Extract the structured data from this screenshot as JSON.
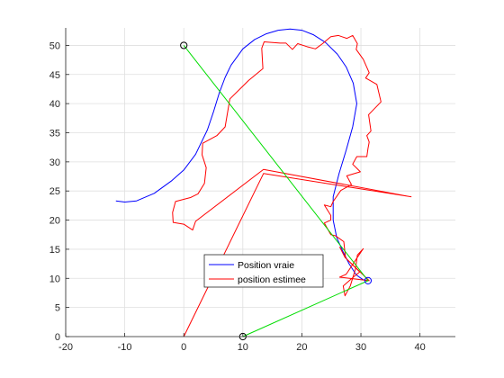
{
  "chart_data": {
    "type": "line",
    "title": "",
    "xlabel": "",
    "ylabel": "",
    "xlim": [
      -20,
      46
    ],
    "ylim": [
      0,
      53
    ],
    "grid": true,
    "x_ticks": [
      -20,
      -10,
      0,
      10,
      20,
      30,
      40
    ],
    "y_ticks": [
      0,
      5,
      10,
      15,
      20,
      25,
      30,
      35,
      40,
      45,
      50
    ],
    "legend": {
      "placement": "center-bottom",
      "entries": [
        {
          "label": "Position vraie",
          "color": "#0000ff"
        },
        {
          "label": "position estimee",
          "color": "#ff0000"
        }
      ]
    },
    "series": [
      {
        "name": "Position vraie",
        "color": "#0000ff",
        "points": [
          [
            -11.5,
            23.3
          ],
          [
            -10,
            23.1
          ],
          [
            -8,
            23.3
          ],
          [
            -5,
            24.6
          ],
          [
            -2,
            26.8
          ],
          [
            0,
            28.6
          ],
          [
            2,
            31.3
          ],
          [
            4,
            35.5
          ],
          [
            5,
            38.5
          ],
          [
            6,
            41.8
          ],
          [
            7,
            44.5
          ],
          [
            8,
            46.6
          ],
          [
            10,
            49.4
          ],
          [
            12,
            51
          ],
          [
            14,
            52
          ],
          [
            16,
            52.6
          ],
          [
            18,
            52.8
          ],
          [
            20,
            52.6
          ],
          [
            22,
            51.8
          ],
          [
            24,
            50.5
          ],
          [
            26,
            48.5
          ],
          [
            27.5,
            46.3
          ],
          [
            28.7,
            43.5
          ],
          [
            29.3,
            40
          ],
          [
            28.6,
            36
          ],
          [
            27.5,
            32
          ],
          [
            26.3,
            28
          ],
          [
            25.3,
            24
          ],
          [
            25.3,
            20
          ],
          [
            25.9,
            17
          ],
          [
            27,
            14.5
          ],
          [
            28,
            12.5
          ],
          [
            29.2,
            10.6
          ],
          [
            30.3,
            9.8
          ],
          [
            31.2,
            9.6
          ]
        ]
      },
      {
        "name": "position estimee",
        "color": "#ff0000",
        "points": [
          [
            0,
            0
          ],
          [
            13.5,
            28
          ],
          [
            38.5,
            24
          ],
          [
            13.5,
            28.7
          ],
          [
            2,
            19.8
          ],
          [
            1.5,
            18.3
          ],
          [
            0,
            19.3
          ],
          [
            -1.8,
            19.6
          ],
          [
            -1.9,
            21.3
          ],
          [
            -1.4,
            23.2
          ],
          [
            1.2,
            23.9
          ],
          [
            2.4,
            24.5
          ],
          [
            3.5,
            26.3
          ],
          [
            3.8,
            29
          ],
          [
            3.1,
            31.2
          ],
          [
            3.2,
            33.2
          ],
          [
            5.6,
            34.5
          ],
          [
            7,
            36
          ],
          [
            7.8,
            40.8
          ],
          [
            11,
            44
          ],
          [
            13.4,
            46
          ],
          [
            13.2,
            49.5
          ],
          [
            13.6,
            50.6
          ],
          [
            16.3,
            50.4
          ],
          [
            17.3,
            50.4
          ],
          [
            18.4,
            49.3
          ],
          [
            19.3,
            50.3
          ],
          [
            20.8,
            49.8
          ],
          [
            22.3,
            49.4
          ],
          [
            23.5,
            50.3
          ],
          [
            24.9,
            51.5
          ],
          [
            26.2,
            51.7
          ],
          [
            27.6,
            51.2
          ],
          [
            28.6,
            51.7
          ],
          [
            29.4,
            50.3
          ],
          [
            29.2,
            49.3
          ],
          [
            30.4,
            47.6
          ],
          [
            31.4,
            45.3
          ],
          [
            30.8,
            44.4
          ],
          [
            32.7,
            43.3
          ],
          [
            33.4,
            40.3
          ],
          [
            31.3,
            38.1
          ],
          [
            31.6,
            36
          ],
          [
            31.7,
            35.3
          ],
          [
            31,
            34.5
          ],
          [
            31.4,
            33.4
          ],
          [
            31.2,
            32.3
          ],
          [
            31,
            30.9
          ],
          [
            29.3,
            30.9
          ],
          [
            28.6,
            29.6
          ],
          [
            29.9,
            28.3
          ],
          [
            27.6,
            27.6
          ],
          [
            28.4,
            26.1
          ],
          [
            26.6,
            25.1
          ],
          [
            25.3,
            23.2
          ],
          [
            24.9,
            22.3
          ],
          [
            23.8,
            22.6
          ],
          [
            24.9,
            20.8
          ],
          [
            24.9,
            20
          ],
          [
            23.8,
            19.5
          ],
          [
            24.4,
            18.4
          ],
          [
            24.9,
            17.5
          ],
          [
            25.7,
            17.3
          ],
          [
            27.1,
            16.3
          ],
          [
            27.4,
            13.5
          ],
          [
            29.8,
            11.1
          ],
          [
            28.7,
            10.2
          ],
          [
            27,
            8.7
          ],
          [
            27.3,
            7
          ],
          [
            28.2,
            8.7
          ],
          [
            29.1,
            11.7
          ],
          [
            29.4,
            14
          ],
          [
            30.4,
            15.1
          ],
          [
            29.2,
            13.3
          ],
          [
            27.5,
            10.7
          ],
          [
            26.4,
            10.2
          ],
          [
            31.4,
            9.6
          ],
          [
            27.3,
            13.6
          ],
          [
            26.4,
            15.4
          ]
        ]
      },
      {
        "name": "",
        "color": "#00dd00",
        "points": [
          [
            0,
            50
          ],
          [
            31.2,
            9.6
          ],
          [
            10,
            0
          ]
        ]
      }
    ],
    "markers": [
      {
        "x": 0,
        "y": 50,
        "color": "#000000"
      },
      {
        "x": 10,
        "y": 0,
        "color": "#000000"
      },
      {
        "x": 31.2,
        "y": 9.6,
        "color": "#0000ff"
      }
    ]
  }
}
